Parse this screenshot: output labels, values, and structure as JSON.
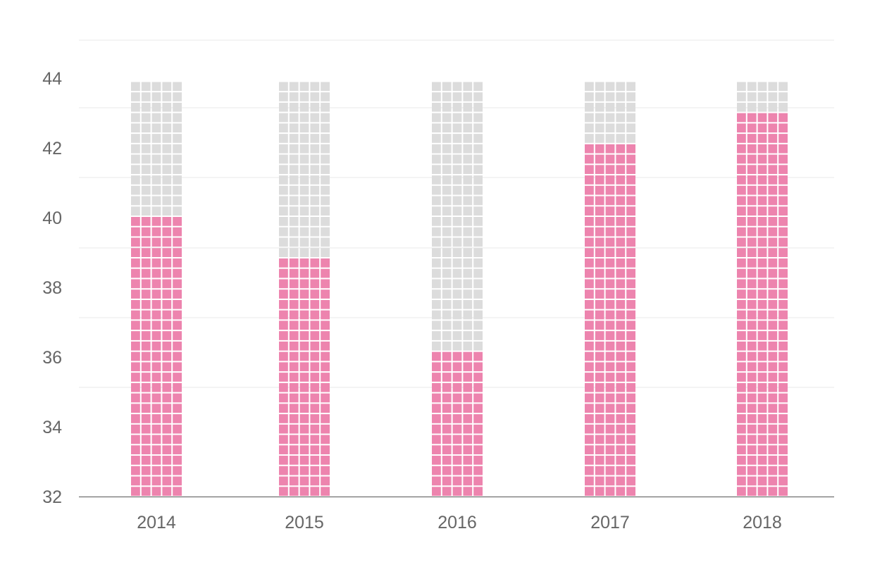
{
  "chart_data": {
    "type": "bar",
    "categories": [
      "2014",
      "2015",
      "2016",
      "2017",
      "2018"
    ],
    "values": [
      40.0,
      38.8,
      36.1,
      42.0,
      42.9
    ],
    "background_max": 43.8,
    "ylim": [
      32,
      44
    ],
    "yticks": [
      "32",
      "34",
      "36",
      "38",
      "40",
      "42",
      "44"
    ],
    "title": "",
    "xlabel": "",
    "ylabel": "",
    "grid": true,
    "legend": "none",
    "colors": {
      "filled": "#ed84ae",
      "empty": "#dcdcdc",
      "grid": "#e8e8e8",
      "axis": "#555555",
      "text": "#666666"
    }
  }
}
